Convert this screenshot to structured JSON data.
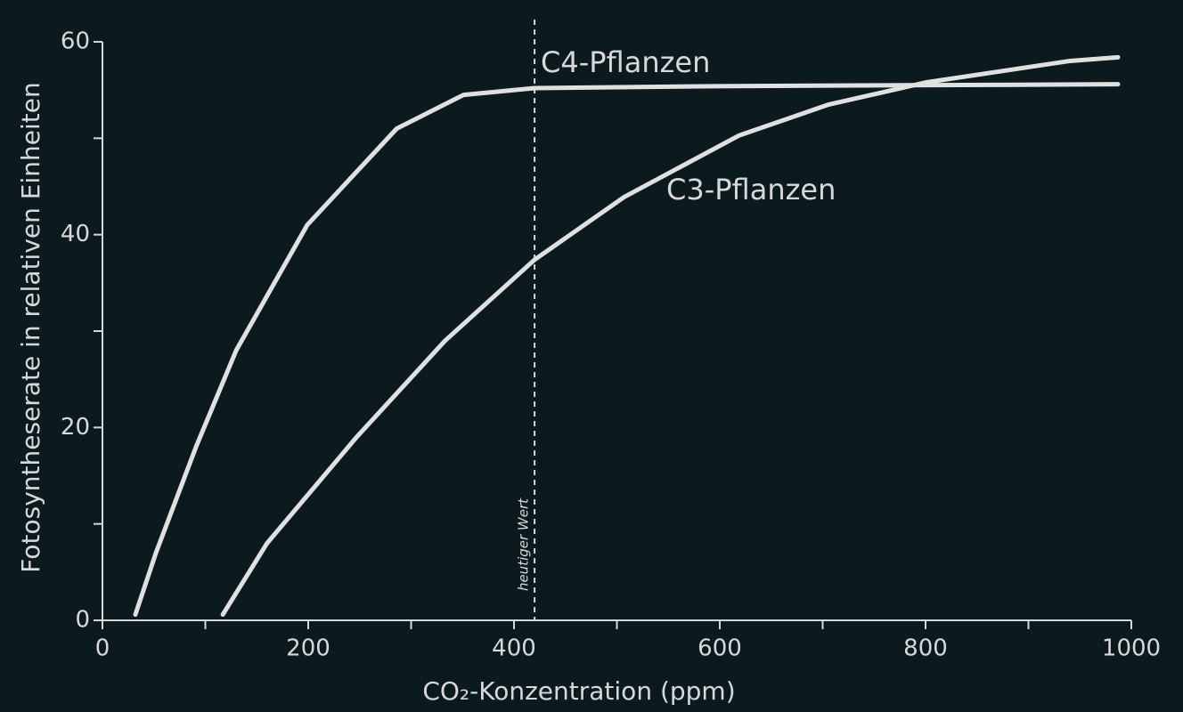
{
  "chart_data": {
    "type": "line",
    "xlabel": "CO₂-Konzentration (ppm)",
    "ylabel": "Fotosyntheserate in relativen Einheiten",
    "xlim": [
      0,
      1000
    ],
    "ylim": [
      0,
      60
    ],
    "xticks": [
      0,
      200,
      400,
      600,
      800,
      1000
    ],
    "xminor": [
      100,
      300,
      500,
      700,
      900
    ],
    "yticks": [
      0,
      20,
      40,
      60
    ],
    "yminor": [
      10,
      30,
      50
    ],
    "grid": false,
    "reference_line": {
      "x": 420,
      "label": "heutiger Wert"
    },
    "series": [
      {
        "name": "C4-Pflanzen",
        "color": "#e0e0e0",
        "x": [
          32,
          52,
          91,
          130,
          199,
          286,
          351,
          420,
          593,
          987
        ],
        "values": [
          0.6,
          7,
          18,
          28,
          41,
          51,
          54.5,
          55.2,
          55.4,
          55.6
        ]
      },
      {
        "name": "C3-Pflanzen",
        "color": "#e0e0e0",
        "x": [
          117,
          160,
          247,
          333,
          420,
          507,
          619,
          706,
          801,
          939,
          987
        ],
        "values": [
          0.6,
          8,
          19,
          29,
          37.4,
          43.9,
          50.3,
          53.5,
          55.8,
          58,
          58.4
        ]
      }
    ]
  }
}
